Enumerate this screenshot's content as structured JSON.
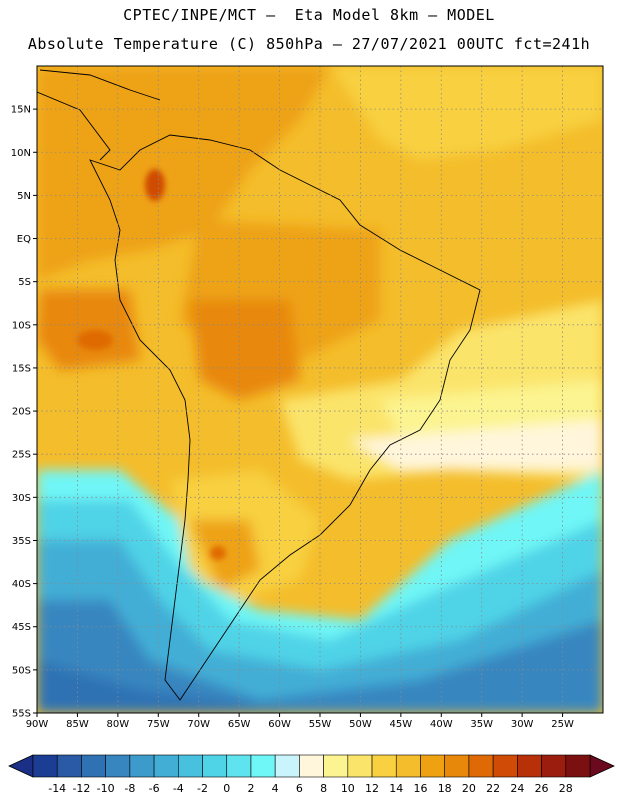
{
  "header": {
    "line1": "CPTEC/INPE/MCT –  Eta Model 8km – MODEL",
    "line2": "Absolute Temperature (C) 850hPa – 27/07/2021 00UTC fct=241h"
  },
  "map": {
    "lon_range": [
      -90,
      -20
    ],
    "lat_range": [
      -55,
      20
    ],
    "lat_ticks": [
      {
        "value": 15,
        "label": "15N"
      },
      {
        "value": 10,
        "label": "10N"
      },
      {
        "value": 5,
        "label": "5N"
      },
      {
        "value": 0,
        "label": "EQ"
      },
      {
        "value": -5,
        "label": "5S"
      },
      {
        "value": -10,
        "label": "10S"
      },
      {
        "value": -15,
        "label": "15S"
      },
      {
        "value": -20,
        "label": "20S"
      },
      {
        "value": -25,
        "label": "25S"
      },
      {
        "value": -30,
        "label": "30S"
      },
      {
        "value": -35,
        "label": "35S"
      },
      {
        "value": -40,
        "label": "40S"
      },
      {
        "value": -45,
        "label": "45S"
      },
      {
        "value": -50,
        "label": "50S"
      },
      {
        "value": -55,
        "label": "55S"
      }
    ],
    "lon_ticks": [
      {
        "value": -90,
        "label": "90W"
      },
      {
        "value": -85,
        "label": "85W"
      },
      {
        "value": -80,
        "label": "80W"
      },
      {
        "value": -75,
        "label": "75W"
      },
      {
        "value": -70,
        "label": "70W"
      },
      {
        "value": -65,
        "label": "65W"
      },
      {
        "value": -60,
        "label": "60W"
      },
      {
        "value": -55,
        "label": "55W"
      },
      {
        "value": -50,
        "label": "50W"
      },
      {
        "value": -45,
        "label": "45W"
      },
      {
        "value": -40,
        "label": "40W"
      },
      {
        "value": -35,
        "label": "35W"
      },
      {
        "value": -30,
        "label": "30W"
      },
      {
        "value": -25,
        "label": "25W"
      }
    ],
    "grid": true
  },
  "colorbar": {
    "levels": [
      -14,
      -12,
      -10,
      -8,
      -6,
      -4,
      -2,
      0,
      2,
      4,
      6,
      8,
      10,
      12,
      14,
      16,
      18,
      20,
      22,
      24,
      26,
      28
    ],
    "labels": [
      "-14",
      "-12",
      "-10",
      "-8",
      "-6",
      "-4",
      "-2",
      "0",
      "2",
      "4",
      "6",
      "8",
      "10",
      "12",
      "14",
      "16",
      "18",
      "20",
      "22",
      "24",
      "26",
      "28"
    ],
    "colors": [
      "#1b3d93",
      "#2a5aa6",
      "#2f72b4",
      "#3786c0",
      "#3d9bcb",
      "#42aed6",
      "#48c1df",
      "#4fd3e7",
      "#5fe3ee",
      "#6ff6f6",
      "#c9f4fb",
      "#fff6dc",
      "#fcf490",
      "#fbe46a",
      "#f8d040",
      "#f4bd2b",
      "#eea212",
      "#e8880b",
      "#df6a05",
      "#cf4b06",
      "#b83008",
      "#9b1d0d",
      "#7a1010"
    ],
    "under_color": "#1b2f86",
    "over_color": "#6b0a1e"
  }
}
